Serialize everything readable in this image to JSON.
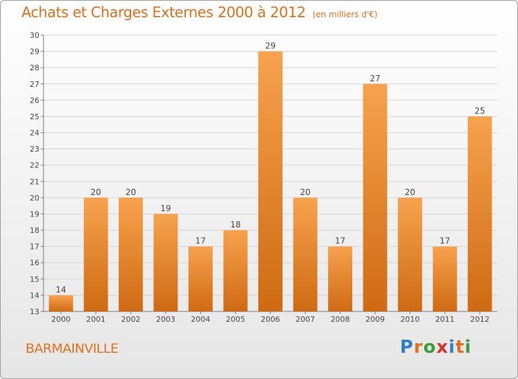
{
  "chart_data": {
    "type": "bar",
    "title": "Achats et Charges Externes 2000 à 2012",
    "subtitle": "(en milliers d'€)",
    "categories": [
      "2000",
      "2001",
      "2002",
      "2003",
      "2004",
      "2005",
      "2006",
      "2007",
      "2008",
      "2009",
      "2010",
      "2011",
      "2012"
    ],
    "values": [
      14,
      20,
      20,
      19,
      17,
      18,
      29,
      20,
      17,
      27,
      20,
      17,
      25
    ],
    "xlabel": "",
    "ylabel": "",
    "ylim": [
      13,
      30
    ],
    "yticks": [
      13,
      14,
      15,
      16,
      17,
      18,
      19,
      20,
      21,
      22,
      23,
      24,
      25,
      26,
      27,
      28,
      29,
      30
    ],
    "grid": true,
    "bar_color_top": "#f7a24e",
    "bar_color_bottom": "#cf6a12"
  },
  "footer": {
    "town": "BARMAINVILLE",
    "logo_letters": [
      "P",
      "r",
      "o",
      "x",
      "i",
      "t",
      "i"
    ],
    "logo_colors": [
      "#2f7fc6",
      "#e0701c",
      "#3a9e3a",
      "#d8322a",
      "#2f7fc6",
      "#e0701c",
      "#3a9e3a"
    ]
  }
}
